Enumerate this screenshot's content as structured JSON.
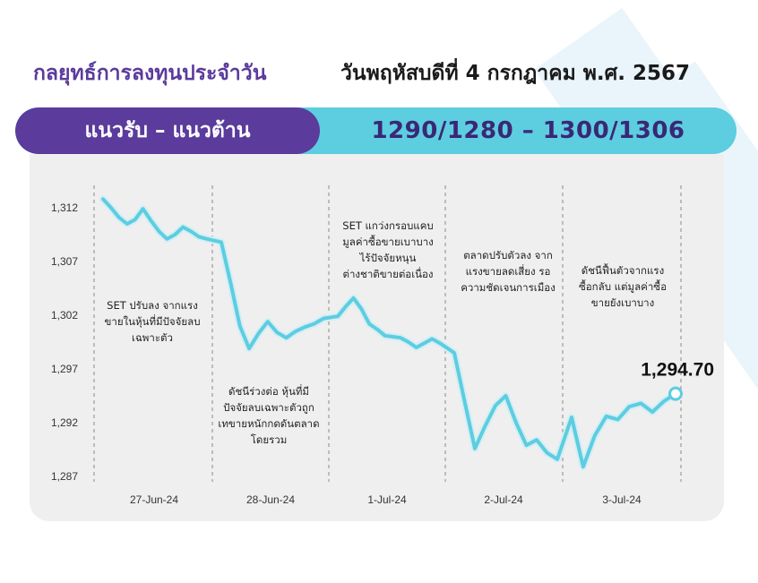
{
  "header": {
    "title_left": "กลยุทธ์การลงทุนประจำวัน",
    "title_right": "วันพฤหัสบดีที่ 4 กรกฎาคม พ.ศ. 2567"
  },
  "band": {
    "left_label": "แนวรับ – แนวต้าน",
    "right_value": "1290/1280  –  1300/1306"
  },
  "colors": {
    "purple": "#5b3b9c",
    "cyan": "#5dcde0",
    "line": "#5dcde0",
    "panel": "#efefef"
  },
  "chart_data": {
    "type": "line",
    "title": "",
    "xlabel": "",
    "ylabel": "",
    "ylim": [
      1287,
      1314
    ],
    "yticks": [
      1312,
      1307,
      1302,
      1297,
      1292,
      1287
    ],
    "ytick_labels": [
      "1,312",
      "1,307",
      "1,302",
      "1,297",
      "1,292",
      "1,287"
    ],
    "days": [
      "27-Jun-24",
      "28-Jun-24",
      "1-Jul-24",
      "2-Jul-24",
      "3-Jul-24"
    ],
    "grid": "vertical-dashed-day-separators",
    "series": [
      {
        "values": [
          [
            1312.8,
            1312.0,
            1311.1,
            1310.5,
            1310.9,
            1311.9,
            1310.8,
            1309.8,
            1309.1,
            1309.5,
            1310.2,
            1309.8,
            1309.3,
            1309.1
          ],
          [
            1308.8,
            1305.0,
            1301.0,
            1298.9,
            1300.3,
            1301.4,
            1300.4,
            1299.9,
            1300.5,
            1300.9,
            1301.2,
            1301.7
          ],
          [
            1301.9,
            1302.8,
            1303.6,
            1302.6,
            1301.2,
            1300.7,
            1300.1,
            1300.0,
            1299.9,
            1299.5,
            1299.0,
            1299.4,
            1299.8,
            1299.4
          ],
          [
            1298.5,
            1294.0,
            1289.6,
            1291.7,
            1293.6,
            1294.5,
            1292.0,
            1289.9,
            1290.4,
            1289.2,
            1288.6
          ],
          [
            1292.5,
            1287.9,
            1290.8,
            1292.6,
            1292.3,
            1293.5,
            1293.8,
            1293.0,
            1294.0,
            1294.7
          ]
        ]
      }
    ],
    "last_value_label": "1,294.70",
    "annotations": [
      [
        "SET ปรับลง จากแรง",
        "ขายในหุ้นที่มีปัจจัยลบ",
        "เฉพาะตัว"
      ],
      [
        "ดัชนีร่วงต่อ หุ้นที่มี",
        "ปัจจัยลบเฉพาะตัวถูก",
        "เทขายหนักกดดันตลาด",
        "โดยรวม"
      ],
      [
        "SET แกว่งกรอบแคบ",
        "มูลค่าซื้อขายเบาบาง",
        "ไร้ปัจจัยหนุน",
        "ต่างชาติขายต่อเนื่อง"
      ],
      [
        "ตลาดปรับตัวลง จาก",
        "แรงขายลดเสี่ยง รอ",
        "ความชัดเจนการเมือง"
      ],
      [
        "ดัชนีฟื้นตัวจากแรง",
        "ซื้อกลับ แต่มูลค่าซื้อ",
        "ขายยังเบาบาง"
      ]
    ]
  }
}
